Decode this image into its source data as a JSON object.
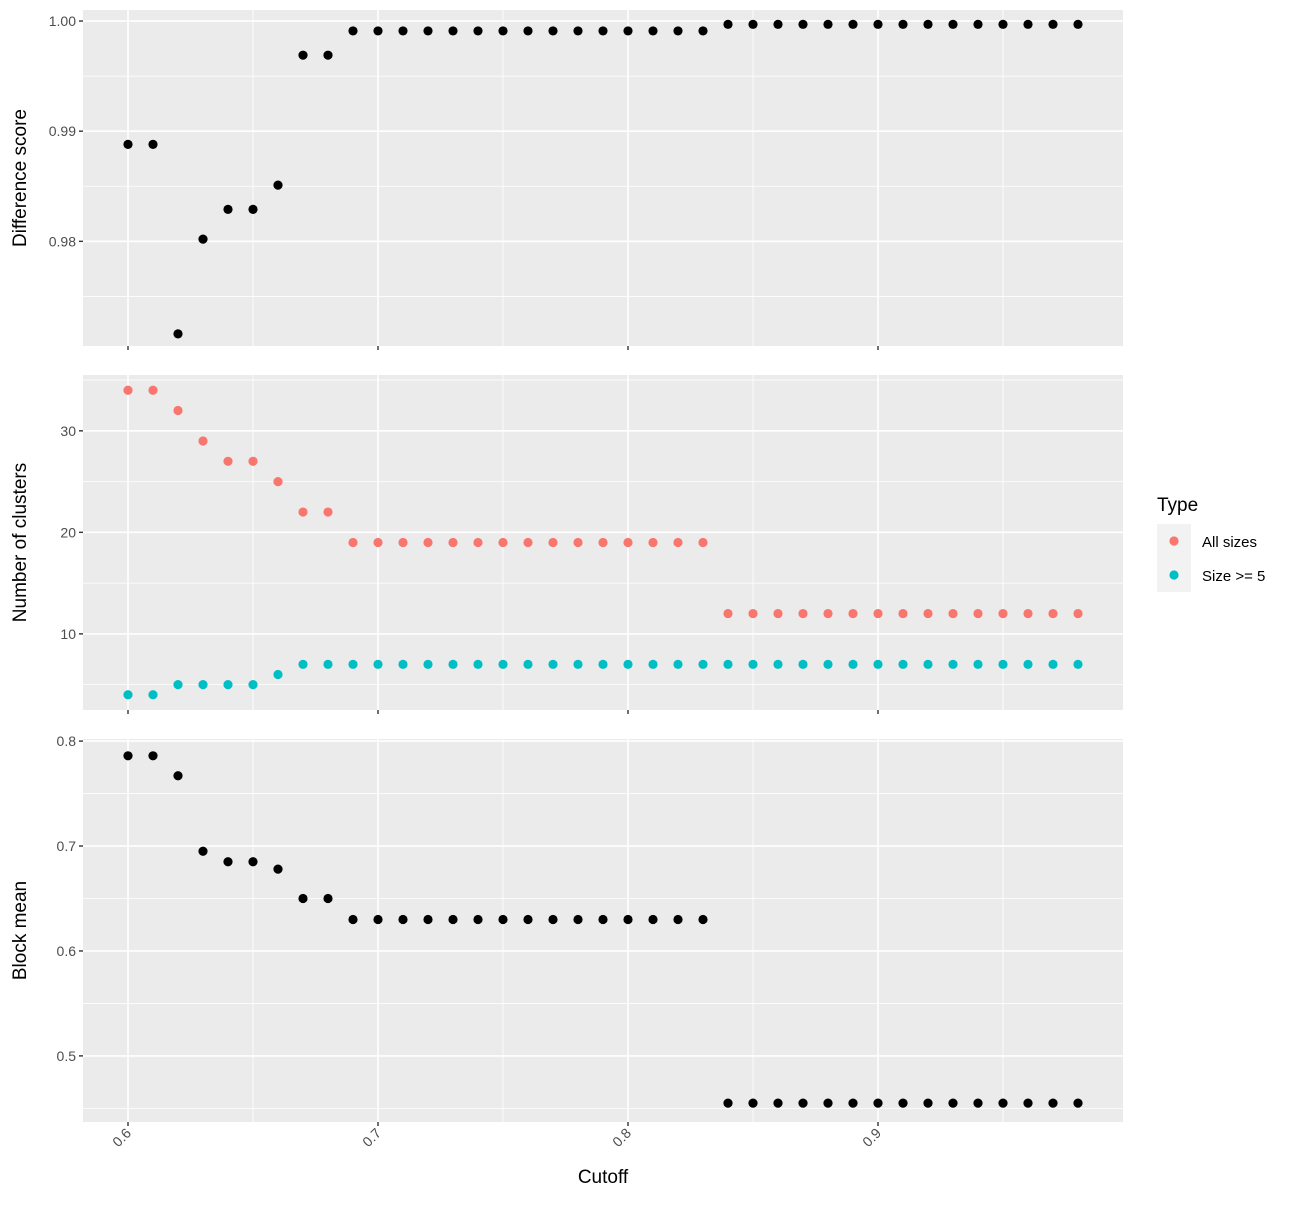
{
  "chart_data": {
    "type": "scatter",
    "xlabel": "Cutoff",
    "x": [
      0.6,
      0.61,
      0.62,
      0.63,
      0.64,
      0.65,
      0.66,
      0.67,
      0.68,
      0.69,
      0.7,
      0.71,
      0.72,
      0.73,
      0.74,
      0.75,
      0.76,
      0.77,
      0.78,
      0.79,
      0.8,
      0.81,
      0.82,
      0.83,
      0.84,
      0.85,
      0.86,
      0.87,
      0.88,
      0.89,
      0.9,
      0.91,
      0.92,
      0.93,
      0.94,
      0.95,
      0.96,
      0.97,
      0.98
    ],
    "xlim": [
      0.582,
      0.998
    ],
    "xticks": [
      0.6,
      0.7,
      0.8,
      0.9
    ],
    "xtick_labels": [
      "0.6",
      "0.7",
      "0.8",
      "0.9"
    ],
    "grid": true,
    "legend": {
      "title": "Type",
      "placement": "right",
      "entries": [
        {
          "name": "All sizes",
          "color": "#F8766D"
        },
        {
          "name": "Size >= 5",
          "color": "#00BFC4"
        }
      ]
    },
    "panels": [
      {
        "ylabel": "Difference score",
        "ylim": [
          0.9705,
          1.001
        ],
        "yticks": [
          0.98,
          0.99,
          1.0
        ],
        "ytick_labels": [
          "0.98",
          "0.99",
          "1.00"
        ],
        "series": [
          {
            "color": "#000000",
            "values": [
              0.9888,
              0.9888,
              0.9716,
              0.9802,
              0.9829,
              0.9829,
              0.9851,
              0.9969,
              0.9969,
              0.9991,
              0.9991,
              0.9991,
              0.9991,
              0.9991,
              0.9991,
              0.9991,
              0.9991,
              0.9991,
              0.9991,
              0.9991,
              0.9991,
              0.9991,
              0.9991,
              0.9991,
              0.9997,
              0.9997,
              0.9997,
              0.9997,
              0.9997,
              0.9997,
              0.9997,
              0.9997,
              0.9997,
              0.9997,
              0.9997,
              0.9997,
              0.9997,
              0.9997,
              0.9997
            ]
          }
        ]
      },
      {
        "ylabel": "Number of clusters",
        "ylim": [
          2.5,
          35.5
        ],
        "yticks": [
          10,
          20,
          30
        ],
        "ytick_labels": [
          "10",
          "20",
          "30"
        ],
        "series": [
          {
            "name": "All sizes",
            "color": "#F8766D",
            "values": [
              34,
              34,
              32,
              29,
              27,
              27,
              25,
              22,
              22,
              19,
              19,
              19,
              19,
              19,
              19,
              19,
              19,
              19,
              19,
              19,
              19,
              19,
              19,
              19,
              12,
              12,
              12,
              12,
              12,
              12,
              12,
              12,
              12,
              12,
              12,
              12,
              12,
              12,
              12
            ]
          },
          {
            "name": "Size >= 5",
            "color": "#00BFC4",
            "values": [
              4,
              4,
              5,
              5,
              5,
              5,
              6,
              7,
              7,
              7,
              7,
              7,
              7,
              7,
              7,
              7,
              7,
              7,
              7,
              7,
              7,
              7,
              7,
              7,
              7,
              7,
              7,
              7,
              7,
              7,
              7,
              7,
              7,
              7,
              7,
              7,
              7,
              7,
              7
            ]
          }
        ]
      },
      {
        "ylabel": "Block mean",
        "ylim": [
          0.437,
          0.802
        ],
        "yticks": [
          0.5,
          0.6,
          0.7,
          0.8
        ],
        "ytick_labels": [
          "0.5",
          "0.6",
          "0.7",
          "0.8"
        ],
        "series": [
          {
            "color": "#000000",
            "values": [
              0.786,
              0.786,
              0.767,
              0.695,
              0.685,
              0.685,
              0.678,
              0.65,
              0.65,
              0.63,
              0.63,
              0.63,
              0.63,
              0.63,
              0.63,
              0.63,
              0.63,
              0.63,
              0.63,
              0.63,
              0.63,
              0.63,
              0.63,
              0.63,
              0.455,
              0.455,
              0.455,
              0.455,
              0.455,
              0.455,
              0.455,
              0.455,
              0.455,
              0.455,
              0.455,
              0.455,
              0.455,
              0.455,
              0.455
            ]
          }
        ]
      }
    ]
  }
}
